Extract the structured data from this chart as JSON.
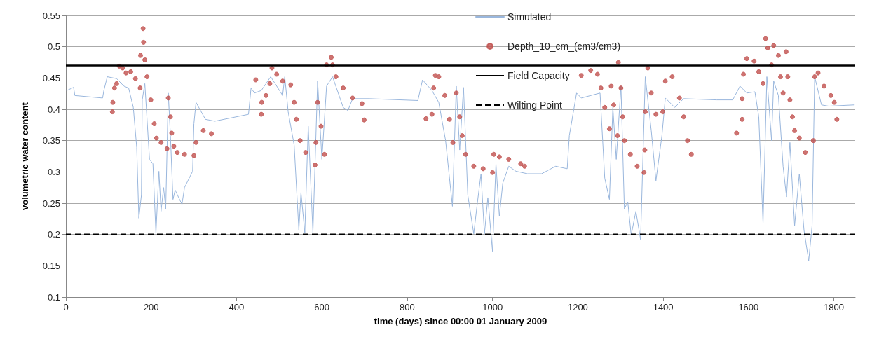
{
  "chart_data": {
    "type": "line",
    "xlabel": "time (days) since 00:00 01 January 2009",
    "ylabel": "volumetric water content",
    "xlim": [
      0,
      1850
    ],
    "xticks": [
      0,
      200,
      400,
      600,
      800,
      1000,
      1200,
      1400,
      1600,
      1800
    ],
    "ylim": [
      0.1,
      0.55
    ],
    "yticks": [
      0.1,
      0.15,
      0.2,
      0.25,
      0.3,
      0.35,
      0.4,
      0.45,
      0.5,
      0.55
    ],
    "grid": "y",
    "legend": "top right",
    "series": [
      {
        "name": "Simulated",
        "type": "line",
        "marker": "none",
        "color": "#9ab7dd",
        "x": [
          2,
          18,
          21,
          86,
          89,
          97,
          119,
          136,
          147,
          158,
          166,
          171,
          177,
          179,
          185,
          196,
          204,
          211,
          218,
          223,
          229,
          234,
          240,
          245,
          251,
          256,
          272,
          278,
          297,
          300,
          305,
          327,
          349,
          428,
          434,
          442,
          458,
          480,
          497,
          508,
          513,
          521,
          535,
          546,
          551,
          560,
          568,
          579,
          590,
          600,
          611,
          625,
          650,
          661,
          672,
          710,
          825,
          836,
          858,
          874,
          890,
          906,
          915,
          923,
          932,
          942,
          956,
          964,
          973,
          981,
          989,
          1000,
          1008,
          1016,
          1024,
          1038,
          1055,
          1082,
          1115,
          1148,
          1175,
          1180,
          1197,
          1208,
          1252,
          1263,
          1274,
          1282,
          1290,
          1301,
          1309,
          1317,
          1325,
          1336,
          1347,
          1358,
          1372,
          1383,
          1397,
          1405,
          1427,
          1448,
          1525,
          1563,
          1580,
          1596,
          1615,
          1624,
          1634,
          1643,
          1654,
          1659,
          1670,
          1681,
          1689,
          1697,
          1708,
          1719,
          1730,
          1741,
          1749,
          1755,
          1771,
          1788,
          1848
        ],
        "values": [
          0.43,
          0.435,
          0.422,
          0.418,
          0.43,
          0.452,
          0.449,
          0.437,
          0.434,
          0.403,
          0.339,
          0.226,
          0.263,
          0.415,
          0.441,
          0.32,
          0.313,
          0.201,
          0.301,
          0.237,
          0.275,
          0.241,
          0.426,
          0.358,
          0.256,
          0.271,
          0.248,
          0.275,
          0.301,
          0.377,
          0.411,
          0.384,
          0.381,
          0.392,
          0.434,
          0.426,
          0.43,
          0.452,
          0.434,
          0.422,
          0.452,
          0.396,
          0.343,
          0.207,
          0.267,
          0.203,
          0.373,
          0.203,
          0.445,
          0.32,
          0.437,
          0.452,
          0.403,
          0.398,
          0.417,
          0.417,
          0.414,
          0.447,
          0.43,
          0.411,
          0.35,
          0.245,
          0.437,
          0.335,
          0.435,
          0.263,
          0.201,
          0.248,
          0.297,
          0.201,
          0.259,
          0.173,
          0.313,
          0.229,
          0.282,
          0.309,
          0.301,
          0.297,
          0.297,
          0.309,
          0.305,
          0.358,
          0.426,
          0.418,
          0.426,
          0.29,
          0.256,
          0.403,
          0.32,
          0.437,
          0.241,
          0.252,
          0.199,
          0.237,
          0.192,
          0.452,
          0.366,
          0.286,
          0.358,
          0.418,
          0.403,
          0.417,
          0.415,
          0.415,
          0.437,
          0.426,
          0.428,
          0.388,
          0.218,
          0.452,
          0.35,
          0.445,
          0.422,
          0.309,
          0.26,
          0.347,
          0.214,
          0.297,
          0.207,
          0.158,
          0.214,
          0.452,
          0.407,
          0.405,
          0.407
        ]
      },
      {
        "name": "Depth_10_cm_(cm3/cm3)",
        "type": "scatter",
        "marker": "circle",
        "color": "#c0504d",
        "x": [
          109,
          110,
          114,
          119,
          125,
          133,
          141,
          152,
          163,
          174,
          175,
          181,
          182,
          185,
          190,
          199,
          207,
          212,
          223,
          237,
          240,
          245,
          248,
          253,
          261,
          278,
          300,
          305,
          322,
          341,
          445,
          458,
          459,
          469,
          478,
          483,
          494,
          508,
          527,
          535,
          540,
          549,
          562,
          584,
          586,
          590,
          598,
          606,
          611,
          622,
          625,
          633,
          650,
          672,
          694,
          699,
          844,
          858,
          862,
          866,
          874,
          888,
          899,
          907,
          915,
          923,
          929,
          937,
          956,
          978,
          1000,
          1003,
          1016,
          1038,
          1066,
          1075,
          1208,
          1230,
          1246,
          1254,
          1263,
          1274,
          1278,
          1284,
          1293,
          1295,
          1301,
          1305,
          1309,
          1323,
          1339,
          1355,
          1357,
          1358,
          1364,
          1372,
          1383,
          1399,
          1405,
          1421,
          1438,
          1448,
          1457,
          1466,
          1572,
          1585,
          1585,
          1588,
          1596,
          1613,
          1624,
          1634,
          1640,
          1645,
          1654,
          1659,
          1670,
          1675,
          1681,
          1688,
          1692,
          1697,
          1703,
          1708,
          1719,
          1733,
          1752,
          1755,
          1763,
          1777,
          1793,
          1801,
          1807
        ],
        "values": [
          0.396,
          0.411,
          0.434,
          0.441,
          0.469,
          0.466,
          0.458,
          0.46,
          0.449,
          0.434,
          0.486,
          0.529,
          0.507,
          0.479,
          0.452,
          0.415,
          0.377,
          0.354,
          0.347,
          0.337,
          0.418,
          0.388,
          0.362,
          0.341,
          0.331,
          0.328,
          0.326,
          0.347,
          0.366,
          0.361,
          0.447,
          0.392,
          0.411,
          0.422,
          0.441,
          0.466,
          0.456,
          0.445,
          0.439,
          0.411,
          0.384,
          0.35,
          0.331,
          0.311,
          0.347,
          0.411,
          0.373,
          0.328,
          0.471,
          0.483,
          0.471,
          0.452,
          0.434,
          0.418,
          0.409,
          0.383,
          0.385,
          0.392,
          0.434,
          0.454,
          0.452,
          0.422,
          0.384,
          0.347,
          0.426,
          0.388,
          0.358,
          0.328,
          0.309,
          0.305,
          0.299,
          0.328,
          0.324,
          0.32,
          0.313,
          0.309,
          0.454,
          0.462,
          0.456,
          0.434,
          0.403,
          0.369,
          0.437,
          0.407,
          0.358,
          0.475,
          0.434,
          0.388,
          0.35,
          0.328,
          0.309,
          0.299,
          0.335,
          0.396,
          0.466,
          0.426,
          0.392,
          0.396,
          0.445,
          0.452,
          0.418,
          0.388,
          0.35,
          0.328,
          0.362,
          0.384,
          0.417,
          0.456,
          0.481,
          0.477,
          0.46,
          0.441,
          0.513,
          0.498,
          0.471,
          0.502,
          0.486,
          0.452,
          0.426,
          0.492,
          0.452,
          0.415,
          0.388,
          0.366,
          0.354,
          0.331,
          0.35,
          0.452,
          0.458,
          0.437,
          0.422,
          0.411,
          0.384
        ]
      }
    ],
    "ref_lines": [
      {
        "axis": "y",
        "value": 0.47,
        "label": "Field Capacity",
        "color": "#000000",
        "line_style": "solid"
      },
      {
        "axis": "y",
        "value": 0.2,
        "label": "Wilting Point",
        "color": "#000000",
        "line_style": "dashed"
      }
    ]
  }
}
